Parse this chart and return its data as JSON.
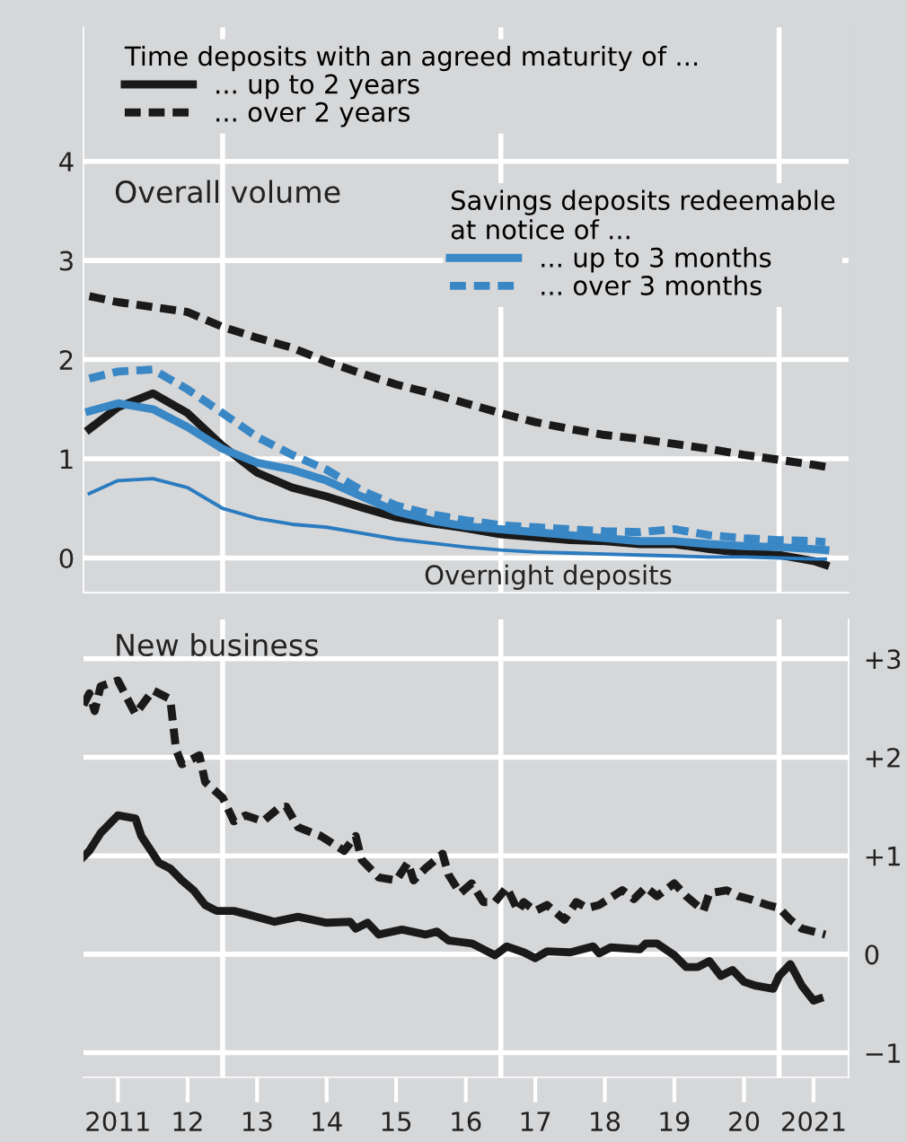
{
  "chart_data": [
    {
      "type": "line",
      "title": "Overall volume",
      "legend_title": "Time deposits with an agreed maturity of ...",
      "legend": "top left",
      "annotations": [
        "Savings deposits redeemable\nat notice of ...",
        "Overnight deposits"
      ],
      "x": [
        "2011-02",
        "2011-07",
        "2012-01",
        "2012-07",
        "2013-01",
        "2013-07",
        "2014-01",
        "2014-07",
        "2015-01",
        "2015-07",
        "2016-01",
        "2016-07",
        "2017-01",
        "2017-07",
        "2018-01",
        "2018-07",
        "2019-01",
        "2019-07",
        "2020-01",
        "2020-07",
        "2021-01",
        "2021-07",
        "2021-09"
      ],
      "series": [
        {
          "name": "... up to 2 years",
          "color": "#1a1a1a",
          "line_style": "solid",
          "values": [
            1.3,
            1.52,
            1.66,
            1.46,
            1.13,
            0.86,
            0.71,
            0.62,
            0.51,
            0.41,
            0.35,
            0.3,
            0.24,
            0.21,
            0.18,
            0.17,
            0.14,
            0.14,
            0.09,
            0.05,
            0.03,
            -0.03,
            -0.07
          ]
        },
        {
          "name": "... over 2 years",
          "color": "#1a1a1a",
          "line_style": "dashed",
          "values": [
            2.64,
            2.58,
            2.53,
            2.48,
            2.33,
            2.22,
            2.12,
            1.98,
            1.86,
            1.75,
            1.66,
            1.56,
            1.46,
            1.37,
            1.3,
            1.24,
            1.2,
            1.15,
            1.1,
            1.04,
            0.99,
            0.94,
            0.92
          ]
        },
        {
          "name": "... up to 3 months",
          "color": "#3a87c5",
          "line_style": "solid",
          "values": [
            1.48,
            1.56,
            1.5,
            1.32,
            1.1,
            0.96,
            0.89,
            0.78,
            0.62,
            0.47,
            0.38,
            0.32,
            0.29,
            0.26,
            0.23,
            0.2,
            0.17,
            0.17,
            0.14,
            0.12,
            0.11,
            0.09,
            0.08
          ]
        },
        {
          "name": "... over 3 months",
          "color": "#3a87c5",
          "line_style": "dashed",
          "values": [
            1.81,
            1.88,
            1.9,
            1.7,
            1.46,
            1.22,
            1.04,
            0.89,
            0.68,
            0.53,
            0.44,
            0.38,
            0.33,
            0.31,
            0.29,
            0.27,
            0.26,
            0.29,
            0.23,
            0.2,
            0.18,
            0.17,
            0.16
          ]
        },
        {
          "color": "#2a7bbf",
          "line_style": "solid",
          "values": [
            0.65,
            0.78,
            0.8,
            0.71,
            0.5,
            0.4,
            0.34,
            0.31,
            0.25,
            0.19,
            0.15,
            0.11,
            0.08,
            0.06,
            0.05,
            0.04,
            0.03,
            0.02,
            0.01,
            0.01,
            0.0,
            -0.01,
            -0.01
          ]
        }
      ],
      "xlim": [
        "2011-01",
        "2022-01"
      ],
      "ylim": [
        -0.35,
        5.35
      ],
      "yticks": [
        0,
        1,
        2,
        3,
        4
      ],
      "grid": "y",
      "tick_labels": "y",
      "ref_lines": [
        {
          "axis": "x",
          "value": "2013-01",
          "color": "#ffffff"
        },
        {
          "axis": "x",
          "value": "2017-01",
          "color": "#ffffff"
        },
        {
          "axis": "x",
          "value": "2021-01",
          "color": "#ffffff"
        }
      ]
    },
    {
      "type": "line",
      "title": "New business",
      "series": [
        {
          "color": "#1a1a1a",
          "line_style": "solid",
          "x": [
            "2011-01",
            "2011-02",
            "2011-04",
            "2011-07",
            "2011-10",
            "2011-11",
            "2012-02",
            "2012-04",
            "2012-06",
            "2012-08",
            "2012-10",
            "2012-12",
            "2013-03",
            "2013-05",
            "2013-10",
            "2014-02",
            "2014-07",
            "2014-11",
            "2014-12",
            "2015-02",
            "2015-04",
            "2015-08",
            "2015-12",
            "2016-02",
            "2016-04",
            "2016-08",
            "2016-10",
            "2016-12",
            "2017-02",
            "2017-05",
            "2017-07",
            "2017-09",
            "2018-01",
            "2018-05",
            "2018-06",
            "2018-08",
            "2019-01",
            "2019-02",
            "2019-04",
            "2019-07",
            "2019-09",
            "2019-11",
            "2020-01",
            "2020-03",
            "2020-05",
            "2020-07",
            "2020-09",
            "2020-12",
            "2021-01",
            "2021-03",
            "2021-05",
            "2021-07",
            "2021-08"
          ],
          "values": [
            0.99,
            1.05,
            1.23,
            1.41,
            1.38,
            1.2,
            0.93,
            0.87,
            0.75,
            0.65,
            0.5,
            0.44,
            0.44,
            0.41,
            0.33,
            0.38,
            0.32,
            0.33,
            0.26,
            0.32,
            0.2,
            0.25,
            0.2,
            0.23,
            0.14,
            0.11,
            0.05,
            -0.01,
            0.08,
            0.02,
            -0.04,
            0.03,
            0.02,
            0.08,
            0.01,
            0.07,
            0.05,
            0.11,
            0.11,
            -0.01,
            -0.13,
            -0.13,
            -0.07,
            -0.22,
            -0.16,
            -0.28,
            -0.32,
            -0.35,
            -0.22,
            -0.1,
            -0.32,
            -0.47,
            -0.45
          ]
        },
        {
          "color": "#1a1a1a",
          "line_style": "dashed",
          "x": [
            "2011-01",
            "2011-02",
            "2011-03",
            "2011-04",
            "2011-07",
            "2011-10",
            "2012-01",
            "2012-04",
            "2012-05",
            "2012-06",
            "2012-09",
            "2012-10",
            "2013-01",
            "2013-03",
            "2013-05",
            "2013-08",
            "2013-11",
            "2013-12",
            "2014-02",
            "2014-06",
            "2014-10",
            "2014-12",
            "2015-01",
            "2015-04",
            "2015-07",
            "2015-09",
            "2015-10",
            "2015-12",
            "2016-03",
            "2016-04",
            "2016-06",
            "2016-08",
            "2016-10",
            "2016-12",
            "2017-02",
            "2017-04",
            "2017-05",
            "2017-07",
            "2017-09",
            "2017-12",
            "2018-02",
            "2018-04",
            "2018-06",
            "2018-10",
            "2018-12",
            "2019-02",
            "2019-04",
            "2019-07",
            "2019-09",
            "2019-12",
            "2020-01",
            "2020-04",
            "2020-06",
            "2020-08",
            "2020-11",
            "2021-01",
            "2021-03",
            "2021-05",
            "2021-09"
          ],
          "values": [
            2.53,
            2.65,
            2.47,
            2.72,
            2.78,
            2.44,
            2.68,
            2.59,
            2.08,
            1.93,
            2.02,
            1.75,
            1.59,
            1.35,
            1.41,
            1.35,
            1.5,
            1.5,
            1.29,
            1.2,
            1.05,
            1.2,
            0.96,
            0.78,
            0.75,
            0.93,
            0.75,
            0.87,
            1.02,
            0.81,
            0.62,
            0.72,
            0.53,
            0.53,
            0.68,
            0.44,
            0.53,
            0.44,
            0.5,
            0.35,
            0.53,
            0.47,
            0.5,
            0.65,
            0.56,
            0.68,
            0.59,
            0.72,
            0.59,
            0.44,
            0.62,
            0.65,
            0.59,
            0.56,
            0.5,
            0.47,
            0.35,
            0.26,
            0.2
          ]
        }
      ],
      "xlim": [
        "2011-01",
        "2022-01"
      ],
      "ylim": [
        -1.25,
        3.4
      ],
      "yticks": [
        {
          "value": 3,
          "label": "+3"
        },
        {
          "value": 2,
          "label": "+2"
        },
        {
          "value": 1,
          "label": "+1"
        },
        0,
        {
          "value": -1,
          "label": "−1"
        }
      ],
      "xticks": [
        {
          "value": "2011-07",
          "label": "2011"
        },
        {
          "value": "2012-07",
          "label": "12"
        },
        {
          "value": "2013-07",
          "label": "13"
        },
        {
          "value": "2014-07",
          "label": "14"
        },
        {
          "value": "2015-07",
          "label": "15"
        },
        {
          "value": "2016-07",
          "label": "16"
        },
        {
          "value": "2017-07",
          "label": "17"
        },
        {
          "value": "2018-07",
          "label": "18"
        },
        {
          "value": "2019-07",
          "label": "19"
        },
        {
          "value": "2020-07",
          "label": "20"
        },
        {
          "value": "2021-07",
          "label": "2021"
        }
      ],
      "grid": "y",
      "ref_lines": [
        {
          "axis": "x",
          "value": "2013-01",
          "color": "#ffffff"
        },
        {
          "axis": "x",
          "value": "2017-01",
          "color": "#ffffff"
        },
        {
          "axis": "x",
          "value": "2021-01",
          "color": "#ffffff"
        }
      ]
    }
  ]
}
